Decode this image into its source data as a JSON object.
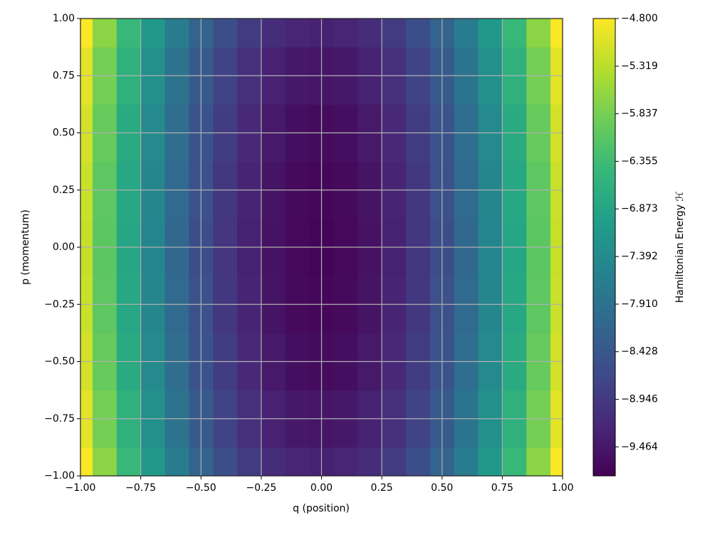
{
  "chart_data": {
    "type": "contourf",
    "colormap": "viridis",
    "grid": true,
    "xlabel": "q (position)",
    "ylabel": "p (momentum)",
    "colorbar_label": "Hamiltonian Energy ℋ",
    "xlim": [
      -1,
      1
    ],
    "ylim": [
      -1,
      1
    ],
    "xticks": [
      {
        "value": -1,
        "label": "−1.00"
      },
      {
        "value": -0.75,
        "label": "−0.75"
      },
      {
        "value": -0.5,
        "label": "−0.50"
      },
      {
        "value": -0.25,
        "label": "−0.25"
      },
      {
        "value": 0,
        "label": "0.00"
      },
      {
        "value": 0.25,
        "label": "0.25"
      },
      {
        "value": 0.5,
        "label": "0.50"
      },
      {
        "value": 0.75,
        "label": "0.75"
      },
      {
        "value": 1,
        "label": "1.00"
      }
    ],
    "yticks": [
      {
        "value": -1,
        "label": "−1.00"
      },
      {
        "value": -0.75,
        "label": "−0.75"
      },
      {
        "value": -0.5,
        "label": "−0.50"
      },
      {
        "value": -0.25,
        "label": "−0.25"
      },
      {
        "value": 0,
        "label": "0.00"
      },
      {
        "value": 0.25,
        "label": "0.25"
      },
      {
        "value": 0.5,
        "label": "0.50"
      },
      {
        "value": 0.75,
        "label": "0.75"
      },
      {
        "value": 1,
        "label": "1.00"
      }
    ],
    "clim": [
      -9.78,
      -4.8
    ],
    "cticks": [
      {
        "value": -4.8,
        "label": "−4.800"
      },
      {
        "value": -5.319,
        "label": "−5.319"
      },
      {
        "value": -5.837,
        "label": "−5.837"
      },
      {
        "value": -6.355,
        "label": "−6.355"
      },
      {
        "value": -6.873,
        "label": "−6.873"
      },
      {
        "value": -7.392,
        "label": "−7.392"
      },
      {
        "value": -7.91,
        "label": "−7.910"
      },
      {
        "value": -8.428,
        "label": "−8.428"
      },
      {
        "value": -8.946,
        "label": "−8.946"
      },
      {
        "value": -9.464,
        "label": "−9.464"
      }
    ],
    "x": [
      -1,
      -0.9,
      -0.8,
      -0.7,
      -0.6,
      -0.5,
      -0.4,
      -0.3,
      -0.2,
      -0.1,
      0,
      0.1,
      0.2,
      0.3,
      0.4,
      0.5,
      0.6,
      0.7,
      0.8,
      0.9,
      1
    ],
    "y": [
      -1,
      -0.75,
      -0.5,
      -0.25,
      0,
      0.25,
      0.5,
      0.75,
      1
    ],
    "z": [
      [
        -4.82,
        -5.675,
        -6.44,
        -7.115,
        -7.7,
        -8.195,
        -8.6,
        -8.915,
        -9.14,
        -9.275,
        -9.32,
        -9.275,
        -9.14,
        -8.915,
        -8.6,
        -8.195,
        -7.7,
        -7.115,
        -6.44,
        -5.675,
        -4.82
      ],
      [
        -4.995,
        -5.85,
        -6.615,
        -7.29,
        -7.875,
        -8.37,
        -8.775,
        -9.09,
        -9.315,
        -9.45,
        -9.495,
        -9.45,
        -9.315,
        -9.09,
        -8.775,
        -8.37,
        -7.875,
        -7.29,
        -6.615,
        -5.85,
        -4.995
      ],
      [
        -5.12,
        -5.975,
        -6.74,
        -7.415,
        -8.0,
        -8.495,
        -8.9,
        -9.215,
        -9.44,
        -9.575,
        -9.62,
        -9.575,
        -9.44,
        -9.215,
        -8.9,
        -8.495,
        -8.0,
        -7.415,
        -6.74,
        -5.975,
        -5.12
      ],
      [
        -5.195,
        -6.05,
        -6.815,
        -7.49,
        -8.075,
        -8.57,
        -8.975,
        -9.29,
        -9.515,
        -9.65,
        -9.695,
        -9.65,
        -9.515,
        -9.29,
        -8.975,
        -8.57,
        -8.075,
        -7.49,
        -6.815,
        -6.05,
        -5.195
      ],
      [
        -5.22,
        -6.075,
        -6.84,
        -7.515,
        -8.1,
        -8.595,
        -9.0,
        -9.315,
        -9.54,
        -9.675,
        -9.72,
        -9.675,
        -9.54,
        -9.315,
        -9.0,
        -8.595,
        -8.1,
        -7.515,
        -6.84,
        -6.075,
        -5.22
      ],
      [
        -5.195,
        -6.05,
        -6.815,
        -7.49,
        -8.075,
        -8.57,
        -8.975,
        -9.29,
        -9.515,
        -9.65,
        -9.695,
        -9.65,
        -9.515,
        -9.29,
        -8.975,
        -8.57,
        -8.075,
        -7.49,
        -6.815,
        -6.05,
        -5.195
      ],
      [
        -5.12,
        -5.975,
        -6.74,
        -7.415,
        -8.0,
        -8.495,
        -8.9,
        -9.215,
        -9.44,
        -9.575,
        -9.62,
        -9.575,
        -9.44,
        -9.215,
        -8.9,
        -8.495,
        -8.0,
        -7.415,
        -6.74,
        -5.975,
        -5.12
      ],
      [
        -4.995,
        -5.85,
        -6.615,
        -7.29,
        -7.875,
        -8.37,
        -8.775,
        -9.09,
        -9.315,
        -9.45,
        -9.495,
        -9.45,
        -9.315,
        -9.09,
        -8.775,
        -8.37,
        -7.875,
        -7.29,
        -6.615,
        -5.85,
        -4.995
      ],
      [
        -4.82,
        -5.675,
        -6.44,
        -7.115,
        -7.7,
        -8.195,
        -8.6,
        -8.915,
        -9.14,
        -9.275,
        -9.32,
        -9.275,
        -9.14,
        -8.915,
        -8.6,
        -8.195,
        -7.7,
        -7.115,
        -6.44,
        -5.675,
        -4.82
      ]
    ]
  }
}
